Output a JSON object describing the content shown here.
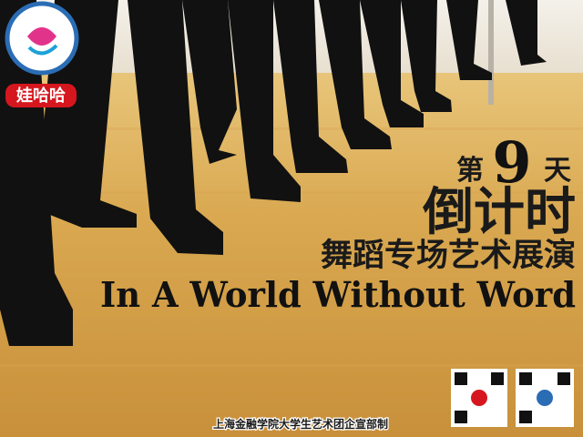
{
  "countdown": {
    "prefix": "第",
    "number": 9,
    "suffix": "天"
  },
  "headline": "倒计时",
  "subtitle": "舞蹈专场艺术展演",
  "english_title": "In A World Without Word",
  "sponsor_logo": "娃哈哈",
  "footer": "上海金融学院大学生艺术团企宣部制"
}
